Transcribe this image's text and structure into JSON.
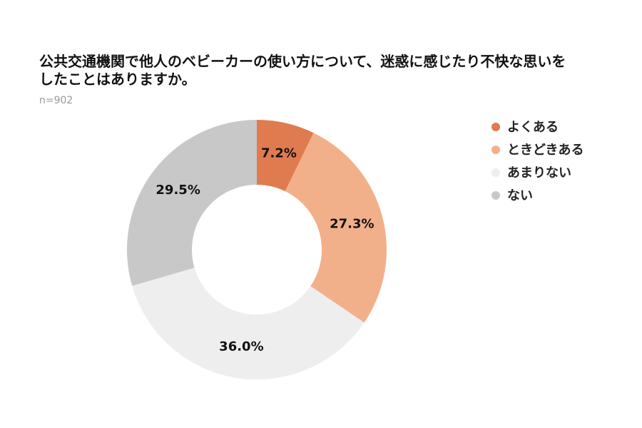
{
  "chart_data": {
    "type": "donut",
    "title": "公共交通機関で他人のベビーカーの使い方について、迷惑に感じたり不快な思いをしたことはありますか。",
    "subtitle": "n=902",
    "categories": [
      "よくある",
      "ときどきある",
      "あまりない",
      "ない"
    ],
    "values": [
      7.2,
      27.3,
      36,
      29.5
    ],
    "value_labels": [
      "7.2%",
      "27.3%",
      "36.0%",
      "29.5%"
    ],
    "colors": [
      "#e07b4f",
      "#f2b08a",
      "#eeeeee",
      "#c8c8c8"
    ]
  }
}
